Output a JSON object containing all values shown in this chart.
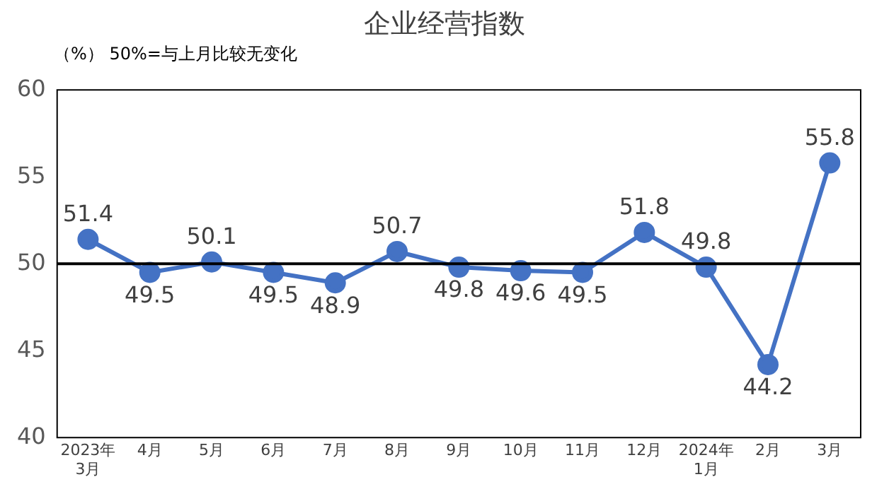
{
  "chart_data": {
    "type": "line",
    "title": "企业经营指数",
    "subtitle": "（%） 50%=与上月比较无变化",
    "categories": [
      "2023年\n3月",
      "4月",
      "5月",
      "6月",
      "7月",
      "8月",
      "9月",
      "10月",
      "11月",
      "12月",
      "2024年\n1月",
      "2月",
      "3月"
    ],
    "series": [
      {
        "color": "#4472c4",
        "values": [
          51.4,
          49.5,
          50.1,
          49.5,
          48.9,
          50.7,
          49.8,
          49.6,
          49.5,
          51.8,
          49.8,
          44.2,
          55.8
        ]
      }
    ],
    "ylim": [
      40,
      60
    ],
    "yticks": [
      40,
      45,
      50,
      55,
      60
    ],
    "grid": false,
    "legend": false,
    "marker": "circle",
    "line_style": "solid",
    "data_labels": true,
    "ref_lines": [
      {
        "axis": "y",
        "value": 50,
        "color": "#000000",
        "line_style": "solid"
      }
    ]
  }
}
